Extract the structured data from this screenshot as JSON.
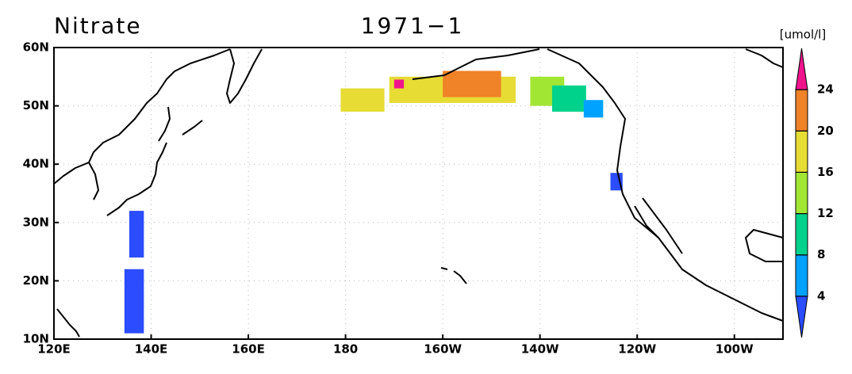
{
  "map": {
    "title": "Nitrate",
    "subtitle": "1971−1",
    "unit": "[umol/l]",
    "xlim": [
      120,
      270
    ],
    "ylim": [
      10,
      60
    ],
    "xticks": [
      {
        "value": 120,
        "label": "120E"
      },
      {
        "value": 140,
        "label": "140E"
      },
      {
        "value": 160,
        "label": "160E"
      },
      180,
      {
        "value": 200,
        "label": "160W"
      },
      {
        "value": 220,
        "label": "140W"
      },
      {
        "value": 240,
        "label": "120W"
      },
      {
        "value": 260,
        "label": "100W"
      }
    ],
    "yticks": [
      {
        "value": 10,
        "label": "10N"
      },
      {
        "value": 20,
        "label": "20N"
      },
      {
        "value": 30,
        "label": "30N"
      },
      {
        "value": 40,
        "label": "40N"
      },
      {
        "value": 50,
        "label": "50N"
      },
      {
        "value": 60,
        "label": "60N"
      }
    ],
    "grid": true,
    "colorbar": {
      "levels": [
        4,
        8,
        12,
        16,
        20,
        24
      ],
      "colors": [
        "#2b4cff",
        "#00a2ff",
        "#00d28c",
        "#a2e634",
        "#e6dc34",
        "#f08228",
        "#f0148c"
      ]
    },
    "patches": [
      {
        "lon": [
          135.5,
          138.5
        ],
        "lat": [
          24,
          32
        ],
        "value": 3
      },
      {
        "lon": [
          134.5,
          138.5
        ],
        "lat": [
          11,
          22
        ],
        "value": 3
      },
      {
        "lon": [
          179,
          188
        ],
        "lat": [
          49,
          53
        ],
        "value": 17
      },
      {
        "lon": [
          189,
          215
        ],
        "lat": [
          50.5,
          55
        ],
        "value": 18
      },
      {
        "lon": [
          200,
          212
        ],
        "lat": [
          51.5,
          56
        ],
        "value": 21
      },
      {
        "lon": [
          218,
          225
        ],
        "lat": [
          50,
          55
        ],
        "value": 15
      },
      {
        "lon": [
          222.5,
          229.5
        ],
        "lat": [
          49,
          53.5
        ],
        "value": 10
      },
      {
        "lon": [
          229,
          233
        ],
        "lat": [
          48,
          51
        ],
        "value": 6
      },
      {
        "lon": [
          234.5,
          237
        ],
        "lat": [
          35.5,
          38.5
        ],
        "value": 3
      },
      {
        "lon": [
          190,
          192
        ],
        "lat": [
          53,
          54.5
        ],
        "value": 25
      }
    ]
  }
}
